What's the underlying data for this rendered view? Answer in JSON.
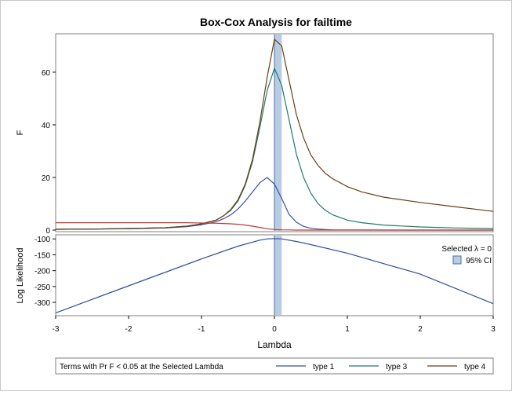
{
  "chart_data": [
    {
      "type": "line",
      "title": "Box-Cox Analysis for failtime",
      "xlabel": "Lambda",
      "ylabel": "F",
      "xlim": [
        -3,
        3
      ],
      "ylim": [
        0,
        74
      ],
      "x_ticks": [
        "-3",
        "-2",
        "-1",
        "0",
        "1",
        "2",
        "3"
      ],
      "y_ticks": [
        "0",
        "20",
        "40",
        "60"
      ],
      "grid": false,
      "x": [
        -3,
        -2.5,
        -2,
        -1.5,
        -1.2,
        -1,
        -0.8,
        -0.7,
        -0.6,
        -0.5,
        -0.4,
        -0.3,
        -0.2,
        -0.1,
        0,
        0.1,
        0.2,
        0.3,
        0.4,
        0.5,
        0.6,
        0.7,
        0.8,
        1,
        1.2,
        1.5,
        2,
        2.5,
        3
      ],
      "series": [
        {
          "name": "type 1",
          "color": "#3f4f9f",
          "values": [
            0.3,
            0.4,
            0.5,
            0.8,
            1.3,
            2.0,
            3.2,
            4.3,
            5.8,
            8.0,
            11.0,
            14.5,
            18.0,
            20.0,
            17.5,
            12.0,
            6.0,
            3.0,
            1.4,
            0.7,
            0.4,
            0.2,
            0.1,
            0.05,
            0.02,
            0.01,
            0,
            0,
            0
          ]
        },
        {
          "name": "type 3",
          "color": "#1e7a6e",
          "values": [
            0.3,
            0.4,
            0.6,
            0.9,
            1.5,
            2.4,
            3.8,
            5.4,
            7.5,
            11.0,
            17.0,
            26.0,
            39.0,
            53.0,
            61.5,
            55.0,
            42.0,
            29.0,
            20.0,
            14.0,
            10.0,
            7.5,
            5.8,
            3.8,
            2.8,
            1.9,
            1.2,
            0.8,
            0.6
          ]
        },
        {
          "name": "type 4",
          "color": "#6b3f10",
          "values": [
            0.3,
            0.4,
            0.6,
            0.9,
            1.5,
            2.4,
            3.8,
            5.4,
            7.8,
            11.5,
            17.5,
            27.0,
            41.0,
            58.0,
            72.5,
            70.0,
            57.0,
            44.0,
            35.0,
            28.5,
            24.5,
            21.5,
            19.5,
            16.5,
            14.5,
            12.5,
            10.5,
            8.8,
            7.1
          ]
        },
        {
          "color": "#c0392b",
          "values": [
            2.8,
            2.8,
            2.8,
            2.8,
            2.8,
            2.7,
            2.6,
            2.5,
            2.4,
            2.2,
            1.9,
            1.5,
            1.0,
            0.5,
            0.2,
            0.1,
            0.05,
            0,
            0,
            0,
            0,
            0,
            0,
            0,
            0,
            0,
            0,
            0,
            0
          ]
        }
      ],
      "selected_band": [
        0,
        0.1
      ]
    },
    {
      "type": "line",
      "xlabel": "Lambda",
      "ylabel": "Log Likelihood",
      "xlim": [
        -3,
        3
      ],
      "ylim": [
        -337,
        -92
      ],
      "x_ticks": [
        "-3",
        "-2",
        "-1",
        "0",
        "1",
        "2",
        "3"
      ],
      "y_ticks": [
        "-100",
        "-150",
        "-200",
        "-250",
        "-300"
      ],
      "grid": false,
      "x": [
        -3,
        -2,
        -1,
        -0.5,
        -0.2,
        -0.1,
        0,
        0.1,
        0.3,
        0.5,
        1,
        2,
        3
      ],
      "series": [
        {
          "color": "#2c4f9f",
          "values": [
            -333,
            -248,
            -163,
            -123,
            -104,
            -100,
            -99,
            -100,
            -108,
            -118,
            -145,
            -211,
            -304
          ]
        }
      ],
      "selected_band": [
        0,
        0.1
      ],
      "legend": {
        "selected_label": "Selected λ = 0",
        "ci_label": "95% CI",
        "ci_color": "#b8cce4",
        "placement": "top-right"
      }
    }
  ],
  "legend_bar": {
    "title": "Terms with Pr F < 0.05 at the Selected Lambda",
    "items": [
      {
        "label": "type 1",
        "color": "#3f4f9f"
      },
      {
        "label": "type 3",
        "color": "#1e7a6e"
      },
      {
        "label": "type 4",
        "color": "#6b3f10"
      }
    ]
  }
}
